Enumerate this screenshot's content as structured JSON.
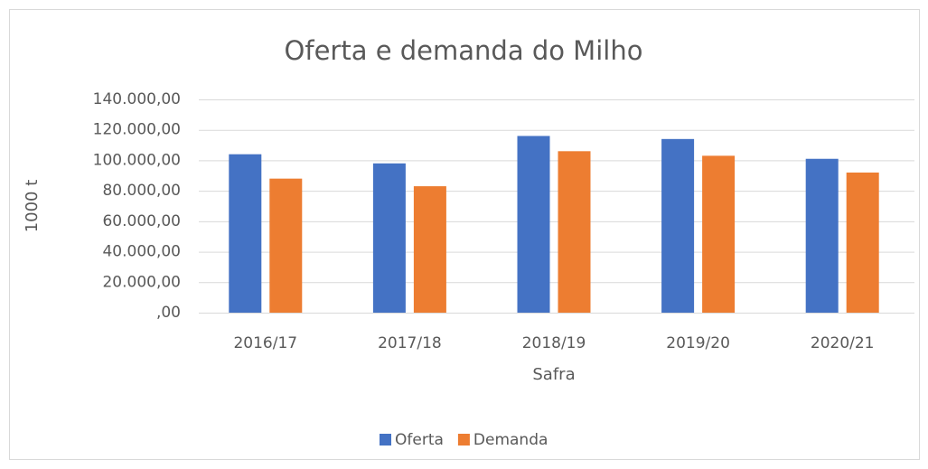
{
  "chart_data": {
    "type": "bar",
    "title": "Oferta e demanda do Milho",
    "x_label": "Safra",
    "y_label": "1000 t",
    "categories": [
      "2016/17",
      "2017/18",
      "2018/19",
      "2019/20",
      "2020/21"
    ],
    "series": [
      {
        "name": "Oferta",
        "color": "#4472c4",
        "values": [
          104000,
          98000,
          116000,
          114000,
          101000
        ]
      },
      {
        "name": "Demanda",
        "color": "#ed7d31",
        "values": [
          88000,
          83000,
          106000,
          103000,
          92000
        ]
      }
    ],
    "ylim": [
      0,
      140000
    ],
    "yticks": [
      {
        "value": 0,
        "label": ",00"
      },
      {
        "value": 20000,
        "label": "20.000,00"
      },
      {
        "value": 40000,
        "label": "40.000,00"
      },
      {
        "value": 60000,
        "label": "60.000,00"
      },
      {
        "value": 80000,
        "label": "80.000,00"
      },
      {
        "value": 100000,
        "label": "100.000,00"
      },
      {
        "value": 120000,
        "label": "120.000,00"
      },
      {
        "value": 140000,
        "label": "140.000,00"
      }
    ],
    "grid": true,
    "legend": "bottom"
  }
}
